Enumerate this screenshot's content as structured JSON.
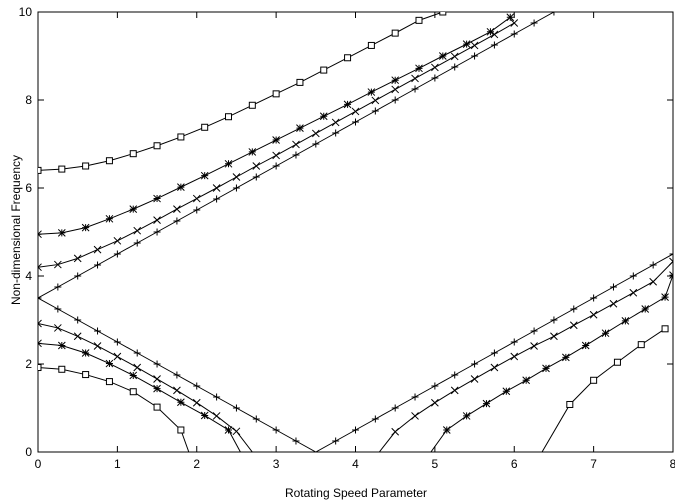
{
  "chart_data": {
    "type": "line",
    "title": "",
    "xlabel": "Rotating Speed Parameter",
    "ylabel": "Non-dimensional Frequency",
    "xlim": [
      0,
      8
    ],
    "ylim": [
      0,
      10
    ],
    "xticks": [
      0,
      1,
      2,
      3,
      4,
      5,
      6,
      7,
      8
    ],
    "yticks": [
      0,
      2,
      4,
      6,
      8,
      10
    ],
    "grid": false,
    "legend": "none",
    "line_color": "#000000",
    "series": [
      {
        "marker": "plus",
        "backward": [
          [
            0,
            3.5
          ],
          [
            0.25,
            3.25
          ],
          [
            0.5,
            3.0
          ],
          [
            0.75,
            2.75
          ],
          [
            1.0,
            2.5
          ],
          [
            1.25,
            2.25
          ],
          [
            1.5,
            2.0
          ],
          [
            1.75,
            1.75
          ],
          [
            2.0,
            1.5
          ],
          [
            2.25,
            1.25
          ],
          [
            2.5,
            1.0
          ],
          [
            2.75,
            0.75
          ],
          [
            3.0,
            0.5
          ],
          [
            3.25,
            0.25
          ],
          [
            3.5,
            0.0
          ],
          [
            3.75,
            0.25
          ],
          [
            4.0,
            0.5
          ],
          [
            4.25,
            0.75
          ],
          [
            4.5,
            1.0
          ],
          [
            4.75,
            1.25
          ],
          [
            5.0,
            1.5
          ],
          [
            5.25,
            1.75
          ],
          [
            5.5,
            2.0
          ],
          [
            5.75,
            2.25
          ],
          [
            6.0,
            2.5
          ],
          [
            6.25,
            2.75
          ],
          [
            6.5,
            3.0
          ],
          [
            6.75,
            3.25
          ],
          [
            7.0,
            3.5
          ],
          [
            7.25,
            3.75
          ],
          [
            7.5,
            4.0
          ],
          [
            7.75,
            4.25
          ],
          [
            8.0,
            4.5
          ]
        ],
        "forward": [
          [
            0,
            3.5
          ],
          [
            0.25,
            3.75
          ],
          [
            0.5,
            4.0
          ],
          [
            0.75,
            4.25
          ],
          [
            1.0,
            4.5
          ],
          [
            1.25,
            4.75
          ],
          [
            1.5,
            5.0
          ],
          [
            1.75,
            5.25
          ],
          [
            2.0,
            5.5
          ],
          [
            2.25,
            5.75
          ],
          [
            2.5,
            6.0
          ],
          [
            2.75,
            6.25
          ],
          [
            3.0,
            6.5
          ],
          [
            3.25,
            6.75
          ],
          [
            3.5,
            7.0
          ],
          [
            3.75,
            7.25
          ],
          [
            4.0,
            7.5
          ],
          [
            4.25,
            7.75
          ],
          [
            4.5,
            8.0
          ],
          [
            4.75,
            8.25
          ],
          [
            5.0,
            8.5
          ],
          [
            5.25,
            8.75
          ],
          [
            5.5,
            9.0
          ],
          [
            5.75,
            9.25
          ],
          [
            6.0,
            9.5
          ],
          [
            6.25,
            9.75
          ],
          [
            6.5,
            10.0
          ]
        ]
      },
      {
        "marker": "cross",
        "backward": [
          [
            0,
            2.92
          ],
          [
            0.25,
            2.82
          ],
          [
            0.5,
            2.63
          ],
          [
            0.75,
            2.41
          ],
          [
            1.0,
            2.17
          ],
          [
            1.25,
            1.92
          ],
          [
            1.5,
            1.66
          ],
          [
            1.75,
            1.4
          ],
          [
            2.0,
            1.12
          ],
          [
            2.25,
            0.82
          ],
          [
            2.5,
            0.47
          ],
          [
            2.7,
            0.0
          ]
        ],
        "return": [
          [
            4.3,
            0.0
          ],
          [
            4.5,
            0.46
          ],
          [
            4.75,
            0.82
          ],
          [
            5.0,
            1.12
          ],
          [
            5.25,
            1.4
          ],
          [
            5.5,
            1.66
          ],
          [
            5.75,
            1.92
          ],
          [
            6.0,
            2.17
          ],
          [
            6.25,
            2.41
          ],
          [
            6.5,
            2.63
          ],
          [
            6.75,
            2.88
          ],
          [
            7.0,
            3.12
          ],
          [
            7.25,
            3.37
          ],
          [
            7.5,
            3.62
          ],
          [
            7.75,
            3.87
          ],
          [
            8.0,
            4.33
          ]
        ],
        "forward": [
          [
            0,
            4.2
          ],
          [
            0.25,
            4.26
          ],
          [
            0.5,
            4.4
          ],
          [
            0.75,
            4.6
          ],
          [
            1.0,
            4.8
          ],
          [
            1.25,
            5.03
          ],
          [
            1.5,
            5.27
          ],
          [
            1.75,
            5.52
          ],
          [
            2.0,
            5.76
          ],
          [
            2.25,
            6.0
          ],
          [
            2.5,
            6.25
          ],
          [
            2.75,
            6.5
          ],
          [
            3.0,
            6.74
          ],
          [
            3.25,
            6.99
          ],
          [
            3.5,
            7.24
          ],
          [
            3.75,
            7.49
          ],
          [
            4.0,
            7.74
          ],
          [
            4.25,
            7.99
          ],
          [
            4.5,
            8.24
          ],
          [
            4.75,
            8.49
          ],
          [
            5.0,
            8.74
          ],
          [
            5.25,
            8.99
          ],
          [
            5.5,
            9.24
          ],
          [
            5.75,
            9.49
          ],
          [
            6.0,
            9.75
          ]
        ]
      },
      {
        "marker": "star",
        "backward": [
          [
            0,
            2.47
          ],
          [
            0.3,
            2.42
          ],
          [
            0.6,
            2.25
          ],
          [
            0.9,
            2.01
          ],
          [
            1.2,
            1.74
          ],
          [
            1.5,
            1.44
          ],
          [
            1.8,
            1.13
          ],
          [
            2.1,
            0.83
          ],
          [
            2.4,
            0.5
          ],
          [
            2.55,
            0.0
          ]
        ],
        "return": [
          [
            4.95,
            0.0
          ],
          [
            5.15,
            0.5
          ],
          [
            5.4,
            0.82
          ],
          [
            5.65,
            1.1
          ],
          [
            5.9,
            1.38
          ],
          [
            6.15,
            1.63
          ],
          [
            6.4,
            1.9
          ],
          [
            6.65,
            2.15
          ],
          [
            6.9,
            2.42
          ],
          [
            7.15,
            2.7
          ],
          [
            7.4,
            2.98
          ],
          [
            7.65,
            3.25
          ],
          [
            7.9,
            3.52
          ],
          [
            8.0,
            4.02
          ]
        ],
        "forward": [
          [
            0,
            4.95
          ],
          [
            0.3,
            4.98
          ],
          [
            0.6,
            5.1
          ],
          [
            0.9,
            5.3
          ],
          [
            1.2,
            5.52
          ],
          [
            1.5,
            5.76
          ],
          [
            1.8,
            6.02
          ],
          [
            2.1,
            6.28
          ],
          [
            2.4,
            6.55
          ],
          [
            2.7,
            6.82
          ],
          [
            3.0,
            7.09
          ],
          [
            3.3,
            7.36
          ],
          [
            3.6,
            7.63
          ],
          [
            3.9,
            7.9
          ],
          [
            4.2,
            8.18
          ],
          [
            4.5,
            8.45
          ],
          [
            4.8,
            8.72
          ],
          [
            5.1,
            9.0
          ],
          [
            5.4,
            9.27
          ],
          [
            5.7,
            9.55
          ],
          [
            5.95,
            9.88
          ]
        ]
      },
      {
        "marker": "box",
        "backward": [
          [
            0,
            1.92
          ],
          [
            0.3,
            1.88
          ],
          [
            0.6,
            1.76
          ],
          [
            0.9,
            1.6
          ],
          [
            1.2,
            1.37
          ],
          [
            1.5,
            1.02
          ],
          [
            1.8,
            0.5
          ],
          [
            1.9,
            0.0
          ]
        ],
        "return": [
          [
            6.35,
            0.0
          ],
          [
            6.7,
            1.08
          ],
          [
            7.0,
            1.63
          ],
          [
            7.3,
            2.04
          ],
          [
            7.6,
            2.44
          ],
          [
            7.9,
            2.8
          ]
        ],
        "forward": [
          [
            0,
            6.4
          ],
          [
            0.3,
            6.43
          ],
          [
            0.6,
            6.5
          ],
          [
            0.9,
            6.62
          ],
          [
            1.2,
            6.78
          ],
          [
            1.5,
            6.96
          ],
          [
            1.8,
            7.16
          ],
          [
            2.1,
            7.38
          ],
          [
            2.4,
            7.62
          ],
          [
            2.7,
            7.88
          ],
          [
            3.0,
            8.14
          ],
          [
            3.3,
            8.4
          ],
          [
            3.6,
            8.68
          ],
          [
            3.9,
            8.96
          ],
          [
            4.2,
            9.24
          ],
          [
            4.5,
            9.52
          ],
          [
            4.8,
            9.81
          ],
          [
            5.1,
            10.0
          ]
        ]
      }
    ]
  }
}
